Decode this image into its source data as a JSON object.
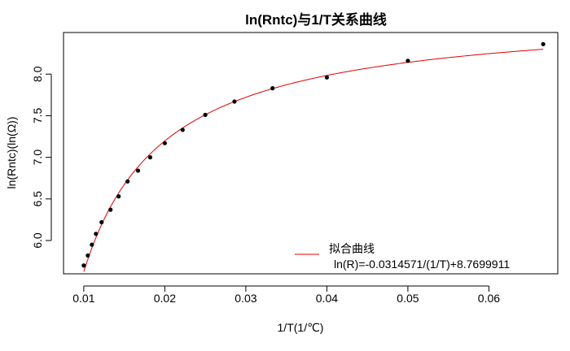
{
  "chart_data": {
    "type": "scatter",
    "title": "ln(Rntc)与1/T关系曲线",
    "xlabel": "1/T(1/℃)",
    "ylabel": "ln(Rntc)(ln(Ω))",
    "xlim": [
      0.0075,
      0.0685
    ],
    "ylim": [
      5.6,
      8.5
    ],
    "x_ticks": [
      0.01,
      0.02,
      0.03,
      0.04,
      0.05,
      0.06
    ],
    "x_tick_labels": [
      "0.01",
      "0.02",
      "0.03",
      "0.04",
      "0.05",
      "0.06"
    ],
    "y_ticks": [
      6.0,
      6.5,
      7.0,
      7.5,
      8.0
    ],
    "y_tick_labels": [
      "6.0",
      "6.5",
      "7.0",
      "7.5",
      "8.0"
    ],
    "grid": false,
    "legend_position": "bottom-right",
    "series": [
      {
        "name": "",
        "kind": "points",
        "color": "#000000",
        "x": [
          0.01,
          0.0105,
          0.011,
          0.0115,
          0.0122,
          0.0133,
          0.0143,
          0.0154,
          0.0167,
          0.0182,
          0.02,
          0.0222,
          0.025,
          0.0286,
          0.0333,
          0.04,
          0.05,
          0.0667
        ],
        "y": [
          5.7,
          5.82,
          5.95,
          6.08,
          6.22,
          6.37,
          6.53,
          6.71,
          6.84,
          7.0,
          7.17,
          7.33,
          7.51,
          7.67,
          7.83,
          7.96,
          8.16,
          8.36
        ]
      },
      {
        "name": "拟合曲线",
        "kind": "line",
        "color": "#dd0000",
        "formula": "ln(R)=-0.0314571/(1/T)+8.7699911",
        "intercept": 8.7699911,
        "coefficient": -0.0314571
      }
    ]
  }
}
